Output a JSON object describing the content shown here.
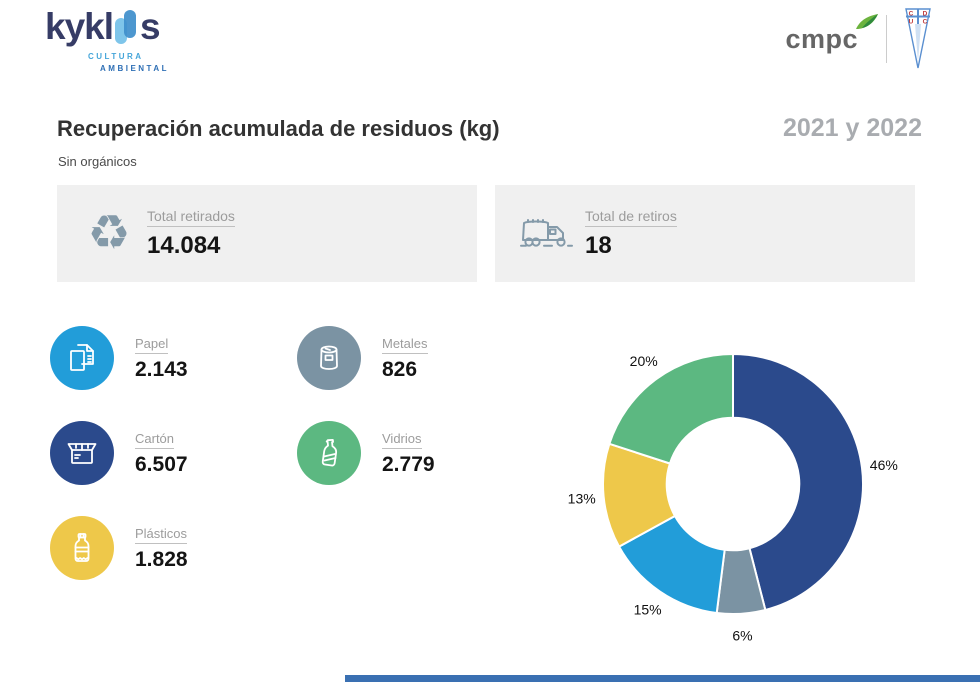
{
  "header": {
    "kyklos": {
      "word_start": "kykl",
      "word_end": "s",
      "tagline1": "CULTURA",
      "tagline2": "AMBIENTAL"
    },
    "cmpc_label": "cmpc",
    "uc": {
      "letters": [
        "C",
        "D",
        "U",
        "C"
      ]
    }
  },
  "title": {
    "main": "Recuperación acumulada de residuos (kg)",
    "period": "2021 y 2022",
    "subtitle": "Sin orgánicos"
  },
  "summary": [
    {
      "label": "Total retirados",
      "value": "14.084",
      "icon": "recycle-icon"
    },
    {
      "label": "Total de retiros",
      "value": "18",
      "icon": "garbage-truck-icon"
    }
  ],
  "categories": [
    {
      "label": "Papel",
      "value": "2.143",
      "color": "#229dd9",
      "icon": "paper-icon"
    },
    {
      "label": "Metales",
      "value": "826",
      "color": "#7b93a3",
      "icon": "can-icon"
    },
    {
      "label": "Cartón",
      "value": "6.507",
      "color": "#2b4a8c",
      "icon": "box-icon"
    },
    {
      "label": "Vidrios",
      "value": "2.779",
      "color": "#5cb881",
      "icon": "glass-bottle-icon"
    },
    {
      "label": "Plásticos",
      "value": "1.828",
      "color": "#eec84a",
      "icon": "plastic-bottle-icon"
    }
  ],
  "chart_data": {
    "type": "pie",
    "subtype": "donut",
    "categories": [
      "Cartón",
      "Metales",
      "Papel",
      "Plásticos",
      "Vidrios"
    ],
    "values": [
      46,
      6,
      15,
      13,
      20
    ],
    "values_kg": [
      6507,
      826,
      2143,
      1828,
      2779
    ],
    "labels": [
      "46%",
      "6%",
      "15%",
      "13%",
      "20%"
    ],
    "colors": [
      "#2b4a8c",
      "#7b93a3",
      "#229dd9",
      "#eec84a",
      "#5cb881"
    ],
    "start_angle_deg": 0,
    "direction": "clockwise",
    "inner_radius_ratio": 0.51,
    "legend_position": "none"
  },
  "footer": {
    "bar_color": "#3a70b2"
  }
}
